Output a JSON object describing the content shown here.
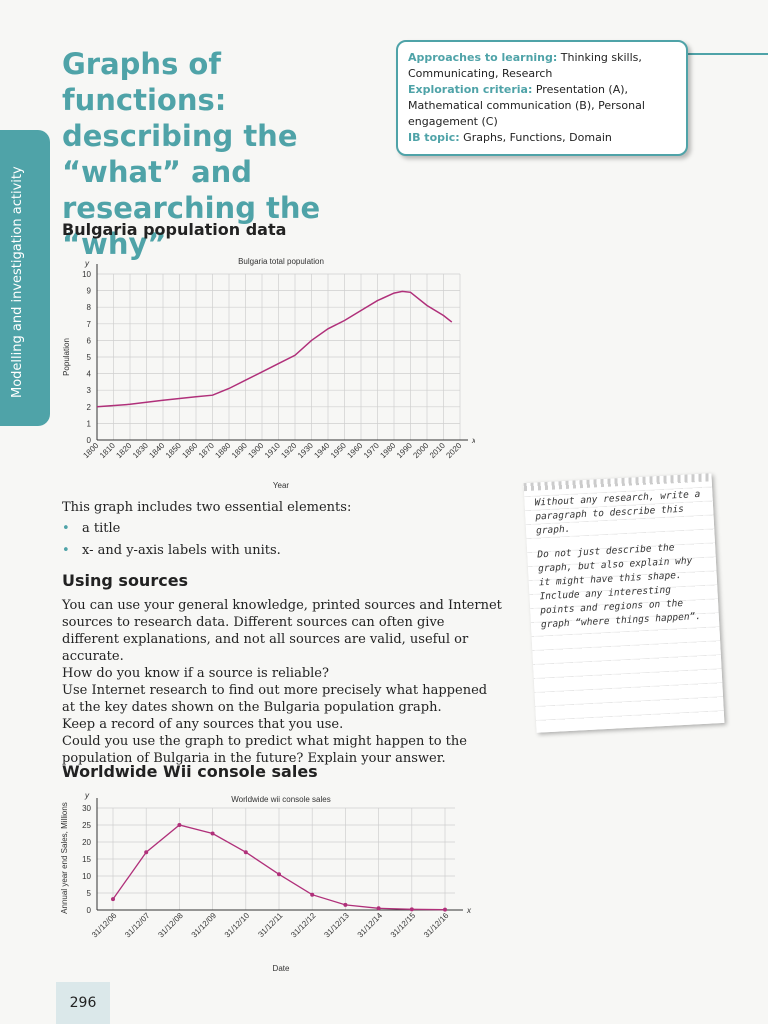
{
  "side_tab": "Modelling and investigation activity",
  "title": "Graphs of functions: describing the “what” and researching the “why”",
  "approach_box": {
    "approaches_key": "Approaches to learning:",
    "approaches_val": " Thinking skills, Communicating, Research",
    "criteria_key": "Exploration criteria:",
    "criteria_val": " Presentation (A), Mathematical communication (B), Personal engagement (C)",
    "topic_key": "IB topic:",
    "topic_val": " Graphs, Functions, Domain"
  },
  "section1_heading": "Bulgaria population data",
  "intro_text": "This graph includes two essential elements:",
  "bullets": [
    "a title",
    "x- and y-axis labels with units."
  ],
  "section2_heading": "Using sources",
  "sources_paragraphs": [
    "You can use your general knowledge, printed sources and Internet sources to research data. Different sources can often give different explanations, and not all sources are valid, useful or accurate.",
    "How do you know if a source is reliable?",
    "Use Internet research to find out more precisely what happened at the key dates shown on the Bulgaria population graph.",
    "Keep a record of any sources that you use.",
    "Could you use the graph to predict what might happen to the population of Bulgaria in the future? Explain your answer."
  ],
  "section3_heading": "Worldwide Wii console sales",
  "note": {
    "p1": "Without any research, write a paragraph to describe this graph.",
    "p2": "Do not just describe the graph, but also explain why it might have this shape. Include any interesting points and regions on the graph “where things happen”."
  },
  "page_number": "296",
  "colors": {
    "accent": "#4fa3a8",
    "curve": "#b0307a"
  },
  "chart_data": [
    {
      "type": "line",
      "title": "Bulgaria total population",
      "xlabel": "Year",
      "ylabel": "Population",
      "x_axis_letter": "x",
      "y_axis_letter": "y",
      "xlim": [
        1800,
        2020
      ],
      "ylim": [
        0,
        10
      ],
      "x_ticks": [
        "1800",
        "1810",
        "1820",
        "1830",
        "1840",
        "1850",
        "1860",
        "1870",
        "1880",
        "1890",
        "1900",
        "1910",
        "1920",
        "1930",
        "1940",
        "1950",
        "1960",
        "1970",
        "1980",
        "1990",
        "2000",
        "2010",
        "2020"
      ],
      "y_ticks": [
        "0",
        "1",
        "2",
        "3",
        "4",
        "5",
        "6",
        "7",
        "8",
        "9",
        "10"
      ],
      "grid": true,
      "x": [
        1800,
        1820,
        1840,
        1860,
        1870,
        1880,
        1890,
        1900,
        1910,
        1920,
        1930,
        1940,
        1950,
        1960,
        1970,
        1980,
        1985,
        1990,
        2000,
        2010,
        2015
      ],
      "y": [
        2.0,
        2.15,
        2.4,
        2.6,
        2.7,
        3.1,
        3.6,
        4.1,
        4.6,
        5.1,
        6.0,
        6.7,
        7.2,
        7.8,
        8.4,
        8.85,
        8.95,
        8.9,
        8.1,
        7.5,
        7.1
      ]
    },
    {
      "type": "line",
      "title": "Worldwide wii console sales",
      "xlabel": "Date",
      "ylabel": "Annual year end Sales, Millions",
      "x_axis_letter": "x",
      "y_axis_letter": "y",
      "ylim": [
        0,
        30
      ],
      "categories": [
        "31/12/06",
        "31/12/07",
        "31/12/08",
        "31/12/09",
        "31/12/10",
        "31/12/11",
        "31/12/12",
        "31/12/13",
        "31/12/14",
        "31/12/15",
        "31/12/16"
      ],
      "y_ticks": [
        "0",
        "5",
        "10",
        "15",
        "20",
        "25",
        "30"
      ],
      "grid": true,
      "values": [
        3.2,
        17,
        25,
        22.5,
        17,
        10.5,
        4.5,
        1.5,
        0.5,
        0.2,
        0.1
      ]
    }
  ]
}
